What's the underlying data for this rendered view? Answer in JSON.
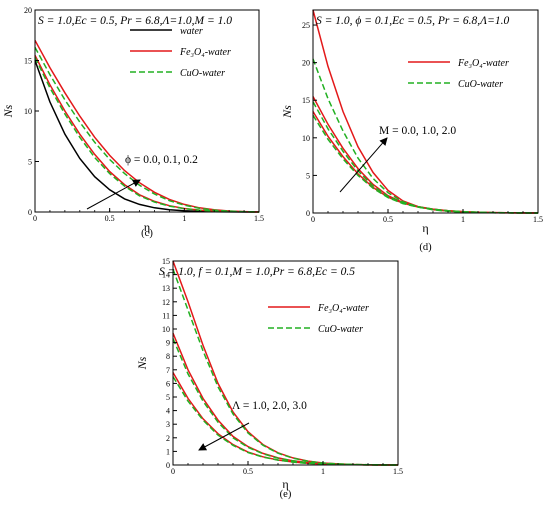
{
  "figure": {
    "title": ""
  },
  "chart_data": [
    {
      "type": "line",
      "label": "(c)",
      "params": "S = 1.0,Ec = 0.5, Pr = 6.8,Λ=1.0,M = 1.0",
      "xlabel": "η",
      "ylabel": "Ns",
      "xlim": [
        0,
        1.5
      ],
      "ylim": [
        0,
        20
      ],
      "xticks": [
        "0",
        "0.5",
        "1",
        "1.5"
      ],
      "yticks": [
        "0",
        "5",
        "10",
        "15",
        "20"
      ],
      "legend": [
        "water",
        "Fe₃O₄-water",
        "CuO-water"
      ],
      "legend_position": "top-right",
      "annotation": "ϕ = 0.0, 0.1, 0.2",
      "series": [
        {
          "name": "water",
          "color": "#000000",
          "dash": "solid",
          "curves": [
            {
              "x": [
                0,
                0.1,
                0.2,
                0.3,
                0.4,
                0.5,
                0.6,
                0.7,
                0.8,
                0.9,
                1.0,
                1.1,
                1.2,
                1.3,
                1.4,
                1.5
              ],
              "y": [
                15.0,
                10.9,
                7.7,
                5.3,
                3.5,
                2.2,
                1.3,
                0.75,
                0.42,
                0.23,
                0.12,
                0.06,
                0.03,
                0.01,
                0.0,
                0.0
              ]
            }
          ]
        },
        {
          "name": "Fe₃O₄-water",
          "color": "#e3191a",
          "dash": "solid",
          "curves": [
            {
              "x": [
                0,
                0.1,
                0.2,
                0.3,
                0.4,
                0.5,
                0.6,
                0.7,
                0.8,
                0.9,
                1.0,
                1.1,
                1.2,
                1.3,
                1.4,
                1.5
              ],
              "y": [
                15.5,
                12.6,
                10.0,
                7.7,
                5.7,
                4.0,
                2.7,
                1.7,
                1.05,
                0.62,
                0.35,
                0.19,
                0.1,
                0.05,
                0.02,
                0.0
              ]
            },
            {
              "x": [
                0,
                0.1,
                0.2,
                0.3,
                0.4,
                0.5,
                0.6,
                0.7,
                0.8,
                0.9,
                1.0,
                1.1,
                1.2,
                1.3,
                1.4,
                1.5
              ],
              "y": [
                17.0,
                14.3,
                11.8,
                9.5,
                7.4,
                5.6,
                4.1,
                2.9,
                1.95,
                1.25,
                0.75,
                0.42,
                0.22,
                0.1,
                0.04,
                0.0
              ]
            }
          ]
        },
        {
          "name": "CuO-water",
          "color": "#22b022",
          "dash": "dashed",
          "curves": [
            {
              "x": [
                0,
                0.1,
                0.2,
                0.3,
                0.4,
                0.5,
                0.6,
                0.7,
                0.8,
                0.9,
                1.0,
                1.1,
                1.2,
                1.3,
                1.4,
                1.5
              ],
              "y": [
                15.3,
                12.3,
                9.7,
                7.4,
                5.4,
                3.8,
                2.55,
                1.6,
                0.98,
                0.58,
                0.33,
                0.18,
                0.09,
                0.04,
                0.02,
                0.0
              ]
            },
            {
              "x": [
                0,
                0.1,
                0.2,
                0.3,
                0.4,
                0.5,
                0.6,
                0.7,
                0.8,
                0.9,
                1.0,
                1.1,
                1.2,
                1.3,
                1.4,
                1.5
              ],
              "y": [
                16.3,
                13.6,
                11.1,
                8.9,
                6.9,
                5.2,
                3.8,
                2.65,
                1.78,
                1.12,
                0.67,
                0.37,
                0.19,
                0.09,
                0.03,
                0.0
              ]
            }
          ]
        }
      ]
    },
    {
      "type": "line",
      "label": "(d)",
      "params": "S = 1.0, ϕ = 0.1,Ec = 0.5, Pr = 6.8,Λ=1.0",
      "xlabel": "η",
      "ylabel": "Ns",
      "xlim": [
        0,
        1.5
      ],
      "ylim": [
        0,
        27
      ],
      "xticks": [
        "0",
        "0.5",
        "1",
        "1.5"
      ],
      "yticks": [
        "0",
        "5",
        "10",
        "15",
        "20",
        "25"
      ],
      "legend": [
        "Fe₃O₄-water",
        "CuO-water"
      ],
      "legend_position": "top-right",
      "annotation": "M = 0.0, 1.0, 2.0",
      "series": [
        {
          "name": "Fe₃O₄-water",
          "color": "#e3191a",
          "dash": "solid",
          "curves": [
            {
              "x": [
                0,
                0.1,
                0.2,
                0.3,
                0.4,
                0.5,
                0.6,
                0.7,
                0.8,
                0.9,
                1.0,
                1.1,
                1.2,
                1.3,
                1.4,
                1.5
              ],
              "y": [
                13.5,
                10.2,
                7.5,
                5.2,
                3.4,
                2.1,
                1.3,
                0.8,
                0.5,
                0.3,
                0.18,
                0.1,
                0.05,
                0.02,
                0.01,
                0.0
              ]
            },
            {
              "x": [
                0,
                0.1,
                0.2,
                0.3,
                0.4,
                0.5,
                0.6,
                0.7,
                0.8,
                0.9,
                1.0,
                1.1,
                1.2,
                1.3,
                1.4,
                1.5
              ],
              "y": [
                15.5,
                11.8,
                8.6,
                5.9,
                3.8,
                2.3,
                1.4,
                0.85,
                0.52,
                0.3,
                0.17,
                0.09,
                0.05,
                0.02,
                0.01,
                0.0
              ]
            },
            {
              "x": [
                0,
                0.1,
                0.2,
                0.3,
                0.4,
                0.5,
                0.6,
                0.7,
                0.8,
                0.9,
                1.0,
                1.1,
                1.2,
                1.3,
                1.4,
                1.5
              ],
              "y": [
                27.0,
                19.5,
                13.5,
                8.8,
                5.4,
                3.0,
                1.6,
                0.85,
                0.45,
                0.25,
                0.13,
                0.07,
                0.03,
                0.01,
                0.0,
                0.0
              ]
            }
          ]
        },
        {
          "name": "CuO-water",
          "color": "#22b022",
          "dash": "dashed",
          "curves": [
            {
              "x": [
                0,
                0.1,
                0.2,
                0.3,
                0.4,
                0.5,
                0.6,
                0.7,
                0.8,
                0.9,
                1.0,
                1.1,
                1.2,
                1.3,
                1.4,
                1.5
              ],
              "y": [
                13.0,
                9.8,
                7.2,
                5.0,
                3.3,
                2.05,
                1.25,
                0.78,
                0.48,
                0.29,
                0.17,
                0.09,
                0.05,
                0.02,
                0.01,
                0.0
              ]
            },
            {
              "x": [
                0,
                0.1,
                0.2,
                0.3,
                0.4,
                0.5,
                0.6,
                0.7,
                0.8,
                0.9,
                1.0,
                1.1,
                1.2,
                1.3,
                1.4,
                1.5
              ],
              "y": [
                14.8,
                11.2,
                8.2,
                5.6,
                3.6,
                2.2,
                1.35,
                0.82,
                0.5,
                0.29,
                0.16,
                0.09,
                0.04,
                0.02,
                0.01,
                0.0
              ]
            },
            {
              "x": [
                0,
                0.1,
                0.2,
                0.3,
                0.4,
                0.5,
                0.6,
                0.7,
                0.8,
                0.9,
                1.0,
                1.1,
                1.2,
                1.3,
                1.4,
                1.5
              ],
              "y": [
                20.5,
                15.2,
                10.9,
                7.3,
                4.6,
                2.7,
                1.5,
                0.8,
                0.43,
                0.23,
                0.12,
                0.06,
                0.03,
                0.01,
                0.0,
                0.0
              ]
            }
          ]
        }
      ]
    },
    {
      "type": "line",
      "label": "(e)",
      "params": "S = 1.0, f = 0.1,M = 1.0,Pr = 6.8,Ec = 0.5",
      "xlabel": "η",
      "ylabel": "Ns",
      "xlim": [
        0,
        1.5
      ],
      "ylim": [
        0,
        15
      ],
      "xticks": [
        "0",
        "0.5",
        "1",
        "1.5"
      ],
      "yticks": [
        "0",
        "1",
        "2",
        "3",
        "4",
        "5",
        "6",
        "7",
        "8",
        "9",
        "10",
        "11",
        "12",
        "13",
        "14",
        "15"
      ],
      "legend": [
        "Fe₃O₄-water",
        "CuO-water"
      ],
      "legend_position": "top-right",
      "annotation": "Λ = 1.0, 2.0, 3.0",
      "series": [
        {
          "name": "Fe₃O₄-water",
          "color": "#e3191a",
          "dash": "solid",
          "curves": [
            {
              "x": [
                0,
                0.1,
                0.2,
                0.3,
                0.4,
                0.5,
                0.6,
                0.7,
                0.8,
                0.9,
                1.0,
                1.1,
                1.2,
                1.3,
                1.4,
                1.5
              ],
              "y": [
                6.8,
                4.9,
                3.4,
                2.3,
                1.5,
                0.95,
                0.6,
                0.37,
                0.22,
                0.13,
                0.07,
                0.04,
                0.02,
                0.01,
                0.0,
                0.0
              ]
            },
            {
              "x": [
                0,
                0.1,
                0.2,
                0.3,
                0.4,
                0.5,
                0.6,
                0.7,
                0.8,
                0.9,
                1.0,
                1.1,
                1.2,
                1.3,
                1.4,
                1.5
              ],
              "y": [
                9.7,
                7.0,
                4.9,
                3.3,
                2.1,
                1.35,
                0.85,
                0.52,
                0.31,
                0.18,
                0.1,
                0.05,
                0.03,
                0.01,
                0.0,
                0.0
              ]
            },
            {
              "x": [
                0,
                0.1,
                0.2,
                0.3,
                0.4,
                0.5,
                0.6,
                0.7,
                0.8,
                0.9,
                1.0,
                1.1,
                1.2,
                1.3,
                1.4,
                1.5
              ],
              "y": [
                15.0,
                12.0,
                8.8,
                6.0,
                3.9,
                2.45,
                1.5,
                0.9,
                0.52,
                0.29,
                0.15,
                0.08,
                0.04,
                0.02,
                0.01,
                0.0
              ]
            }
          ]
        },
        {
          "name": "CuO-water",
          "color": "#22b022",
          "dash": "dashed",
          "curves": [
            {
              "x": [
                0,
                0.1,
                0.2,
                0.3,
                0.4,
                0.5,
                0.6,
                0.7,
                0.8,
                0.9,
                1.0,
                1.1,
                1.2,
                1.3,
                1.4,
                1.5
              ],
              "y": [
                6.5,
                4.7,
                3.3,
                2.2,
                1.45,
                0.92,
                0.58,
                0.36,
                0.21,
                0.12,
                0.07,
                0.04,
                0.02,
                0.01,
                0.0,
                0.0
              ]
            },
            {
              "x": [
                0,
                0.1,
                0.2,
                0.3,
                0.4,
                0.5,
                0.6,
                0.7,
                0.8,
                0.9,
                1.0,
                1.1,
                1.2,
                1.3,
                1.4,
                1.5
              ],
              "y": [
                9.3,
                6.7,
                4.7,
                3.15,
                2.0,
                1.3,
                0.82,
                0.5,
                0.3,
                0.17,
                0.09,
                0.05,
                0.03,
                0.01,
                0.0,
                0.0
              ]
            },
            {
              "x": [
                0,
                0.1,
                0.2,
                0.3,
                0.4,
                0.5,
                0.6,
                0.7,
                0.8,
                0.9,
                1.0,
                1.1,
                1.2,
                1.3,
                1.4,
                1.5
              ],
              "y": [
                14.4,
                11.4,
                8.4,
                5.75,
                3.75,
                2.35,
                1.45,
                0.87,
                0.5,
                0.28,
                0.15,
                0.08,
                0.04,
                0.02,
                0.01,
                0.0
              ]
            }
          ]
        }
      ]
    }
  ]
}
